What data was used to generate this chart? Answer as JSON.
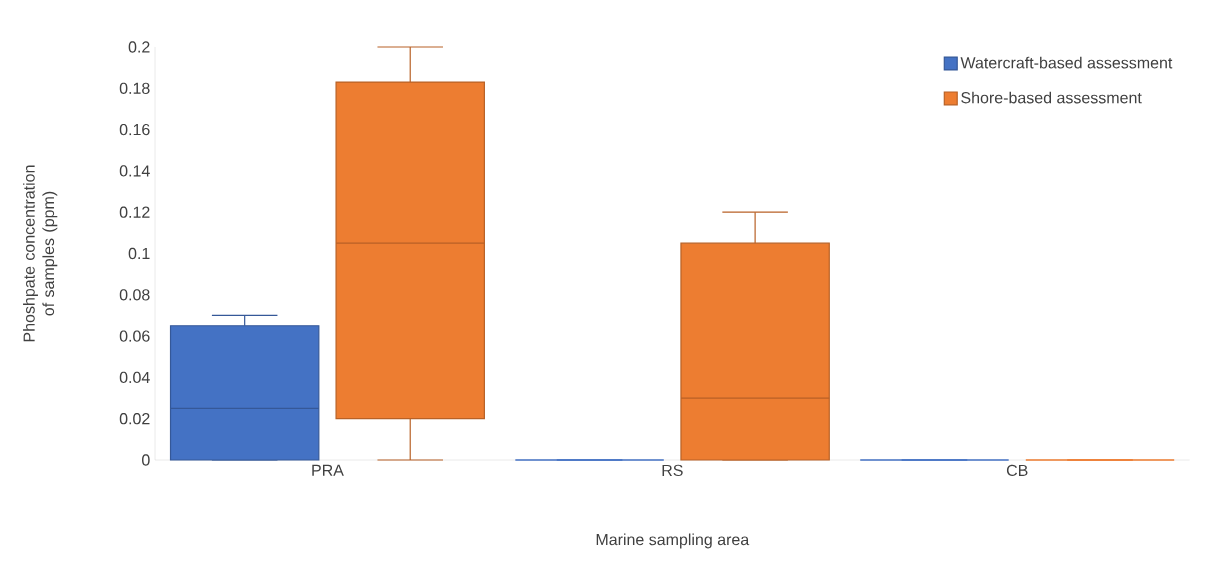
{
  "chart_data": {
    "type": "box",
    "xlabel": "Marine sampling area",
    "ylabel": "Phoshpate concentration of samples (ppm)",
    "categories": [
      "PRA",
      "RS",
      "CB"
    ],
    "ylim": [
      0,
      0.2
    ],
    "yticks": [
      0,
      0.02,
      0.04,
      0.06,
      0.08,
      0.1,
      0.12,
      0.14,
      0.16,
      0.18,
      0.2
    ],
    "legend": "top right",
    "series": [
      {
        "name": "Watercraft-based assessment",
        "color": "#4472c4",
        "boxes": [
          {
            "low": 0,
            "q1": 0,
            "median": 0.025,
            "q3": 0.065,
            "high": 0.07
          },
          {
            "low": 0,
            "q1": 0,
            "median": 0,
            "q3": 0,
            "high": 0
          },
          {
            "low": 0,
            "q1": 0,
            "median": 0,
            "q3": 0,
            "high": 0
          }
        ]
      },
      {
        "name": "Shore-based assessment",
        "color": "#ed7d31",
        "boxes": [
          {
            "low": 0,
            "q1": 0.02,
            "median": 0.105,
            "q3": 0.183,
            "high": 0.2
          },
          {
            "low": 0,
            "q1": 0,
            "median": 0.03,
            "q3": 0.105,
            "high": 0.12
          },
          {
            "low": 0,
            "q1": 0,
            "median": 0,
            "q3": 0,
            "high": 0
          }
        ]
      }
    ]
  }
}
